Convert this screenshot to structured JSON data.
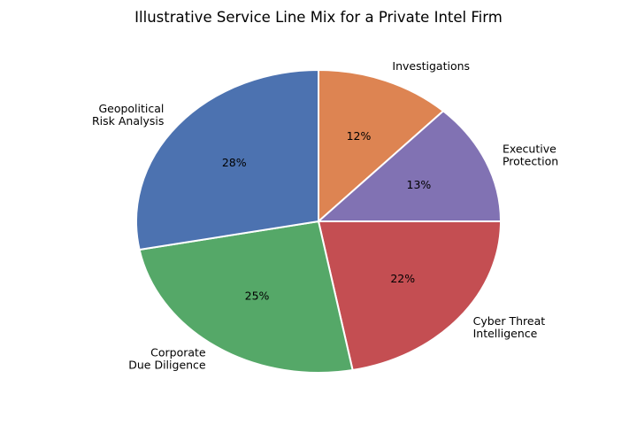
{
  "chart_data": {
    "type": "pie",
    "title": "Illustrative Service Line Mix for a Private Intel Firm",
    "start_angle_deg": 90,
    "direction": "clockwise",
    "slices": [
      {
        "label": "Investigations",
        "label_lines": [
          "Investigations"
        ],
        "value": 12,
        "value_label": "12%",
        "color": "#dd8452"
      },
      {
        "label": "Executive Protection",
        "label_lines": [
          "Executive",
          "Protection"
        ],
        "value": 13,
        "value_label": "13%",
        "color": "#8172b3"
      },
      {
        "label": "Cyber Threat Intelligence",
        "label_lines": [
          "Cyber Threat",
          "Intelligence"
        ],
        "value": 22,
        "value_label": "22%",
        "color": "#c44e52"
      },
      {
        "label": "Corporate Due Diligence",
        "label_lines": [
          "Corporate",
          "Due Diligence"
        ],
        "value": 25,
        "value_label": "25%",
        "color": "#55a868"
      },
      {
        "label": "Geopolitical Risk Analysis",
        "label_lines": [
          "Geopolitical",
          "Risk Analysis"
        ],
        "value": 28,
        "value_label": "28%",
        "color": "#4c72b0"
      }
    ]
  }
}
